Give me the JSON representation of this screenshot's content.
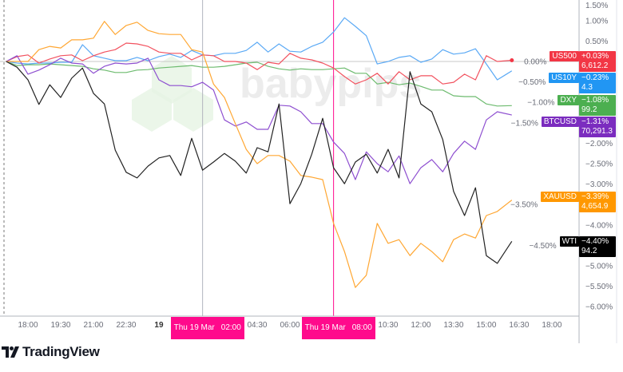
{
  "watermark": "babypips",
  "brand": "TradingView",
  "crosshairs": [
    {
      "day": "Thu 19 Mar",
      "time": "02:00",
      "t": "19 Mar 02:00",
      "line_color": "#b2b5be"
    },
    {
      "day": "Thu 19 Mar",
      "time": "08:00",
      "t": "19 Mar 08:00",
      "line_color": "#ff0a8c"
    }
  ],
  "chart_data": {
    "type": "line",
    "ylabel": "",
    "xlabel": "",
    "ylim": [
      -6.15,
      1.55
    ],
    "y_ticks": [
      "1.50%",
      "1.00%",
      "0.50%",
      "0.00%",
      "−0.50%",
      "−1.00%",
      "−1.50%",
      "−2.00%",
      "−2.50%",
      "−3.00%",
      "−3.50%",
      "−4.00%",
      "−4.50%",
      "−5.00%",
      "−5.50%",
      "−6.00%"
    ],
    "x_ticks": [
      {
        "label": "18:00",
        "t": "18 Mar 18:00"
      },
      {
        "label": "19:30",
        "t": "18 Mar 19:30"
      },
      {
        "label": "21:00",
        "t": "18 Mar 21:00"
      },
      {
        "label": "22:30",
        "t": "18 Mar 22:30"
      },
      {
        "label": "19",
        "t": "19 Mar 00:00",
        "day": true
      },
      {
        "label": "04:30",
        "t": "19 Mar 04:30"
      },
      {
        "label": "06:00",
        "t": "19 Mar 06:00"
      },
      {
        "label": "10:30",
        "t": "19 Mar 10:30"
      },
      {
        "label": "12:00",
        "t": "19 Mar 12:00"
      },
      {
        "label": "13:30",
        "t": "19 Mar 13:30"
      },
      {
        "label": "15:00",
        "t": "19 Mar 15:00"
      },
      {
        "label": "16:30",
        "t": "19 Mar 16:30"
      },
      {
        "label": "18:00",
        "t": "19 Mar 18:00"
      }
    ],
    "x": [
      "18 Mar 17:00",
      "18 Mar 17:30",
      "18 Mar 18:00",
      "18 Mar 18:30",
      "18 Mar 19:00",
      "18 Mar 19:30",
      "18 Mar 20:00",
      "18 Mar 20:30",
      "18 Mar 21:00",
      "18 Mar 21:30",
      "18 Mar 22:00",
      "18 Mar 22:30",
      "18 Mar 23:00",
      "18 Mar 23:30",
      "19 Mar 00:00",
      "19 Mar 00:30",
      "19 Mar 01:00",
      "19 Mar 01:30",
      "19 Mar 02:00",
      "19 Mar 02:30",
      "19 Mar 03:00",
      "19 Mar 03:30",
      "19 Mar 04:00",
      "19 Mar 04:30",
      "19 Mar 05:00",
      "19 Mar 05:30",
      "19 Mar 06:00",
      "19 Mar 06:30",
      "19 Mar 07:00",
      "19 Mar 07:30",
      "19 Mar 08:00",
      "19 Mar 08:30",
      "19 Mar 09:00",
      "19 Mar 09:30",
      "19 Mar 10:00",
      "19 Mar 10:30",
      "19 Mar 11:00",
      "19 Mar 11:30",
      "19 Mar 12:00",
      "19 Mar 12:30",
      "19 Mar 13:00",
      "19 Mar 13:30",
      "19 Mar 14:00",
      "19 Mar 14:30",
      "19 Mar 15:00",
      "19 Mar 15:30",
      "19 Mar 16:10"
    ],
    "series": [
      {
        "name": "DXY",
        "change": "−1.08%",
        "price": "99.2",
        "color": "#4caf50",
        "line": "#6dbb6f",
        "values": [
          0,
          -0.1,
          -0.08,
          -0.08,
          -0.06,
          -0.08,
          -0.1,
          -0.12,
          -0.18,
          -0.21,
          -0.27,
          -0.27,
          -0.21,
          -0.2,
          -0.16,
          -0.14,
          -0.12,
          -0.1,
          -0.14,
          -0.14,
          -0.12,
          -0.08,
          -0.04,
          -0.02,
          -0.12,
          -0.18,
          -0.21,
          -0.18,
          -0.2,
          -0.2,
          -0.18,
          -0.16,
          -0.29,
          -0.29,
          -0.55,
          -0.51,
          -0.57,
          -0.53,
          -0.61,
          -0.7,
          -0.7,
          -0.84,
          -0.86,
          -0.86,
          -1.04,
          -1.09,
          -1.08
        ]
      },
      {
        "name": "US10Y",
        "change": "−0.23%",
        "price": "4.3",
        "color": "#2196f3",
        "line": "#5aa9f5",
        "values": [
          0,
          -0.04,
          -0.06,
          -0.04,
          -0.04,
          -0.02,
          -0.02,
          0.41,
          0.14,
          0.08,
          0.02,
          0.02,
          0.1,
          0.02,
          0.12,
          0.18,
          0.1,
          0.27,
          0.16,
          0.14,
          0.2,
          0.2,
          0.27,
          0.47,
          0.23,
          0.43,
          0.25,
          0.23,
          0.37,
          0.47,
          0.72,
          1.07,
          0.86,
          0.63,
          -0.06,
          0,
          0.1,
          0.14,
          -0.02,
          0.06,
          0.29,
          0.18,
          0.21,
          0.31,
          -0.06,
          -0.45,
          -0.23
        ]
      },
      {
        "name": "US500",
        "change": "+0.03%",
        "price": "6,612.2",
        "color": "#f23645",
        "line": "#f2525f",
        "values": [
          0,
          0.12,
          0.16,
          -0.04,
          0.06,
          0.14,
          0.16,
          0.02,
          0.14,
          0.23,
          0.29,
          0.45,
          0.43,
          0.37,
          0.23,
          0.2,
          0.2,
          0.04,
          0.16,
          0.14,
          0,
          0,
          -0.04,
          -0.2,
          -0.02,
          -0.06,
          0.2,
          0.08,
          0.04,
          -0.04,
          -0.16,
          -0.37,
          -0.55,
          -0.45,
          -0.29,
          -0.55,
          -0.25,
          -0.45,
          -0.35,
          -0.35,
          -0.55,
          -0.51,
          -0.31,
          -0.45,
          0.14,
          0,
          0.03
        ]
      },
      {
        "name": "BTCUSD",
        "change": "−1.31%",
        "price": "70,291.3",
        "color": "#7b2cbf",
        "line": "#8e4fd0",
        "values": [
          0,
          0.14,
          -0.31,
          -0.21,
          -0.08,
          0.08,
          -0.04,
          -0.06,
          -0.29,
          -0.12,
          -0.04,
          -0.06,
          -0.04,
          0.08,
          -0.45,
          -0.59,
          -0.59,
          -0.62,
          -0.51,
          -0.7,
          -1.43,
          -1.58,
          -1.48,
          -1.66,
          -1.66,
          -1.07,
          -1.09,
          -1.23,
          -1.52,
          -1.52,
          -1.97,
          -2.25,
          -2.89,
          -2.21,
          -2.5,
          -2.7,
          -2.31,
          -2.99,
          -2.6,
          -2.4,
          -2.7,
          -2.25,
          -1.95,
          -2.15,
          -1.43,
          -1.23,
          -1.31
        ]
      },
      {
        "name": "XAUUSD",
        "change": "−3.39%",
        "price": "4,654.9",
        "color": "#ff9800",
        "line": "#ffa733",
        "values": [
          0,
          0,
          0,
          0.29,
          0.37,
          0.33,
          0.53,
          0.53,
          0.57,
          0.98,
          0.66,
          0.88,
          0.96,
          0.76,
          0.68,
          0.66,
          0.66,
          0.29,
          0.23,
          -0.55,
          -0.88,
          -1.52,
          -2.15,
          -2.5,
          -2.3,
          -2.3,
          -2.44,
          -2.79,
          -2.83,
          -2.89,
          -3.96,
          -4.65,
          -5.53,
          -5.23,
          -3.96,
          -4.45,
          -4.36,
          -4.75,
          -4.45,
          -4.65,
          -4.9,
          -4.36,
          -4.22,
          -4.32,
          -3.77,
          -3.67,
          -3.39
        ]
      },
      {
        "name": "WTI",
        "change": "−4.40%",
        "price": "94.2",
        "color": "#000000",
        "line": "#222222",
        "values": [
          0,
          -0.14,
          -0.45,
          -1.05,
          -0.57,
          -0.88,
          -0.41,
          -0.16,
          -0.78,
          -1.04,
          -2.17,
          -2.71,
          -2.85,
          -2.56,
          -2.36,
          -2.3,
          -2.79,
          -1.88,
          -2.66,
          -2.46,
          -2.25,
          -2.44,
          -2.73,
          -2.11,
          -2.21,
          -1.04,
          -3.48,
          -2.99,
          -2.27,
          -1.39,
          -2.6,
          -2.99,
          -2.46,
          -2.27,
          -2.73,
          -2.15,
          -2.85,
          -0.25,
          -1.04,
          -1.23,
          -1.91,
          -3.18,
          -3.77,
          -3.09,
          -4.75,
          -4.94,
          -4.4
        ]
      }
    ],
    "grid": false,
    "legend": "right-axis tags"
  }
}
